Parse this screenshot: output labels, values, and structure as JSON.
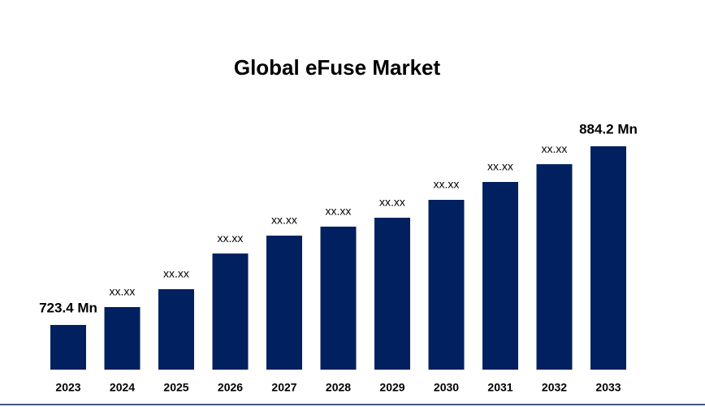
{
  "chart_data": {
    "type": "bar",
    "title": "Global eFuse Market",
    "categories": [
      "2023",
      "2024",
      "2025",
      "2026",
      "2027",
      "2028",
      "2029",
      "2030",
      "2031",
      "2032",
      "2033"
    ],
    "values": [
      723.4,
      739.5,
      755.6,
      787.7,
      803.8,
      811.9,
      819.9,
      836.0,
      852.1,
      868.1,
      884.2
    ],
    "value_labels": [
      "723.4 Mn",
      "xx.xx",
      "xx.xx",
      "xx.xx",
      "xx.xx",
      "xx.xx",
      "xx.xx",
      "xx.xx",
      "xx.xx",
      "xx.xx",
      "884.2 Mn"
    ],
    "color": "#002060",
    "ylim": [
      683.2,
      913.5
    ]
  }
}
